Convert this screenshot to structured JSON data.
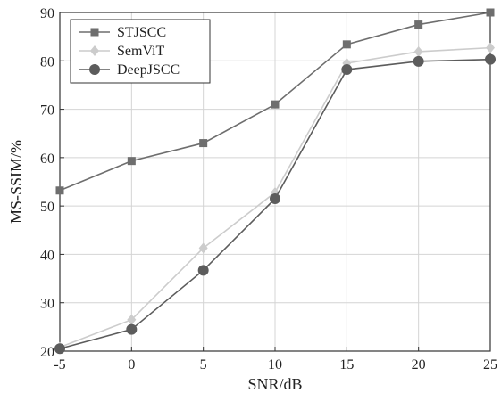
{
  "chart_data": {
    "type": "line",
    "title": "",
    "xlabel": "SNR/dB",
    "ylabel": "MS-SSIM/%",
    "x": [
      -5,
      0,
      5,
      10,
      15,
      20,
      25
    ],
    "xticks": [
      "-5",
      "0",
      "5",
      "10",
      "15",
      "20",
      "25"
    ],
    "yticks": [
      "20",
      "30",
      "40",
      "50",
      "60",
      "70",
      "80",
      "90"
    ],
    "xlim": [
      -5,
      25
    ],
    "ylim": [
      20,
      90
    ],
    "grid": true,
    "legend_position": "top-left",
    "series": [
      {
        "name": "STJSCC",
        "values": [
          53.2,
          59.3,
          63.0,
          71.0,
          83.4,
          87.5,
          90.0
        ],
        "color": "#6e6e6e",
        "marker": "square"
      },
      {
        "name": "SemViT",
        "values": [
          20.8,
          26.5,
          41.3,
          52.8,
          79.5,
          81.9,
          82.7
        ],
        "color": "#cccccc",
        "marker": "diamond"
      },
      {
        "name": "DeepJSCC",
        "values": [
          20.5,
          24.5,
          36.7,
          51.5,
          78.2,
          79.9,
          80.3
        ],
        "color": "#5c5c5c",
        "marker": "circle"
      }
    ]
  }
}
